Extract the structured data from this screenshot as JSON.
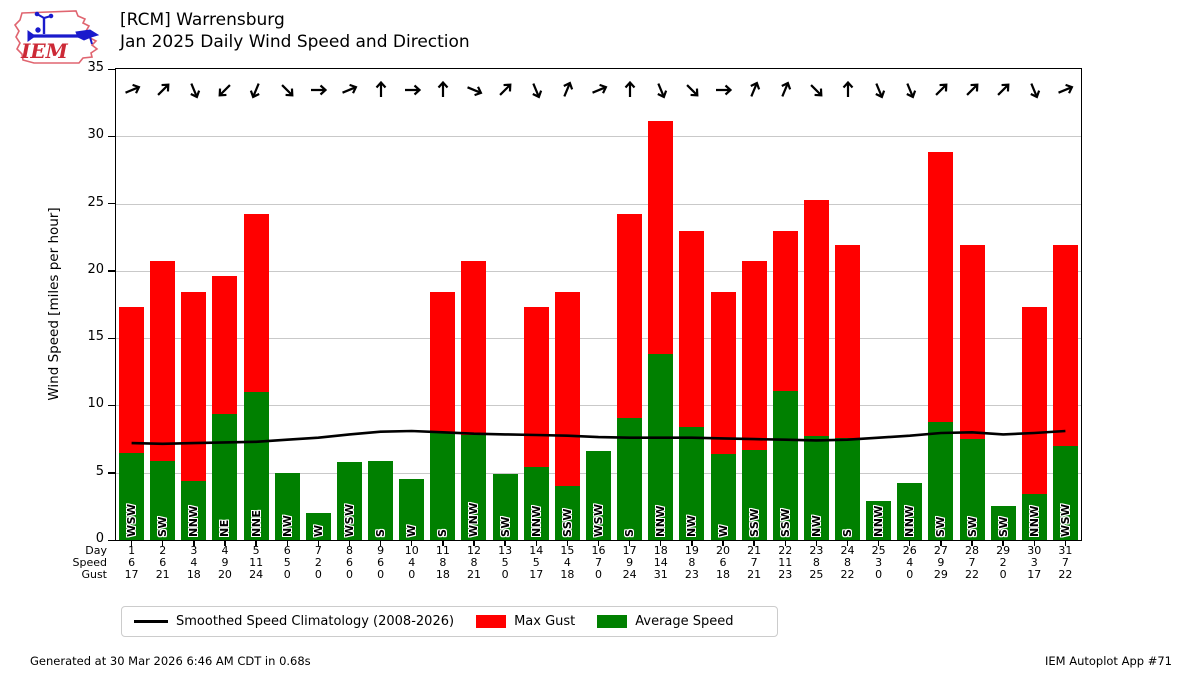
{
  "logo": {
    "label": "IEM"
  },
  "header": {
    "title_line1": "[RCM] Warrensburg",
    "title_line2": "Jan 2025 Daily Wind Speed and Direction"
  },
  "axis": {
    "ylabel": "Wind Speed [miles per hour]",
    "yticks": [
      0,
      5,
      10,
      15,
      20,
      25,
      30,
      35
    ],
    "ylim": [
      0,
      35
    ],
    "row_labels": [
      "Day",
      "Speed",
      "Gust"
    ]
  },
  "legend": {
    "items": [
      {
        "label": "Smoothed Speed Climatology (2008-2026)",
        "swatch": "line",
        "color": "#000000"
      },
      {
        "label": "Max Gust",
        "swatch": "rect",
        "color": "#ff0000"
      },
      {
        "label": "Average Speed",
        "swatch": "rect",
        "color": "#008000"
      }
    ]
  },
  "chart_data": {
    "type": "bar",
    "station": "[RCM] Warrensburg",
    "title": "Jan 2025 Daily Wind Speed and Direction",
    "ylabel": "Wind Speed [miles per hour]",
    "ylim": [
      0,
      35
    ],
    "grid": true,
    "legend_position": "bottom",
    "x": [
      1,
      2,
      3,
      4,
      5,
      6,
      7,
      8,
      9,
      10,
      11,
      12,
      13,
      14,
      15,
      16,
      17,
      18,
      19,
      20,
      21,
      22,
      23,
      24,
      25,
      26,
      27,
      28,
      29,
      30,
      31
    ],
    "wind_direction": [
      "WSW",
      "SW",
      "NNW",
      "NE",
      "NNE",
      "NW",
      "W",
      "WSW",
      "S",
      "W",
      "S",
      "WNW",
      "SW",
      "NNW",
      "SSW",
      "WSW",
      "S",
      "NNW",
      "NW",
      "W",
      "SSW",
      "SSW",
      "NW",
      "S",
      "NNW",
      "NNW",
      "SW",
      "SW",
      "SW",
      "NNW",
      "WSW"
    ],
    "speed_row": [
      6,
      6,
      4,
      9,
      11,
      5,
      2,
      6,
      6,
      4,
      8,
      8,
      5,
      5,
      4,
      7,
      9,
      14,
      8,
      6,
      7,
      11,
      8,
      8,
      3,
      4,
      9,
      7,
      2,
      3,
      7
    ],
    "gust_row": [
      17,
      21,
      18,
      20,
      24,
      0,
      0,
      0,
      0,
      0,
      18,
      21,
      0,
      17,
      18,
      0,
      24,
      31,
      23,
      18,
      21,
      23,
      25,
      22,
      0,
      0,
      29,
      22,
      0,
      17,
      22
    ],
    "series": [
      {
        "name": "Max Gust",
        "type": "bar",
        "color": "#ff0000",
        "values": [
          17.3,
          20.7,
          18.4,
          19.6,
          24.2,
          0,
          0,
          0,
          0,
          0,
          18.4,
          20.7,
          0,
          17.3,
          18.4,
          0,
          24.2,
          31.1,
          23.0,
          18.4,
          20.7,
          23.0,
          25.3,
          21.9,
          0,
          0,
          28.8,
          21.9,
          0,
          17.3,
          21.9
        ]
      },
      {
        "name": "Average Speed",
        "type": "bar",
        "color": "#008000",
        "values": [
          6.5,
          5.9,
          4.4,
          9.4,
          11.0,
          5.0,
          2.0,
          5.8,
          5.9,
          4.5,
          8.0,
          7.8,
          4.9,
          5.4,
          4.0,
          6.6,
          9.1,
          13.8,
          8.4,
          6.4,
          6.7,
          11.1,
          7.7,
          7.6,
          2.9,
          4.2,
          8.8,
          7.5,
          2.5,
          3.4,
          7.0
        ]
      },
      {
        "name": "Smoothed Speed Climatology (2008-2026)",
        "type": "line",
        "color": "#000000",
        "values": [
          7.2,
          7.15,
          7.2,
          7.25,
          7.3,
          7.45,
          7.6,
          7.85,
          8.05,
          8.1,
          8.0,
          7.9,
          7.85,
          7.8,
          7.75,
          7.65,
          7.6,
          7.6,
          7.6,
          7.55,
          7.5,
          7.45,
          7.4,
          7.45,
          7.6,
          7.75,
          7.95,
          8.0,
          7.85,
          7.95,
          8.1
        ]
      }
    ]
  },
  "footer": {
    "generated": "Generated at 30 Mar 2026 6:46 AM CDT in 0.68s",
    "app": "IEM Autoplot App #71"
  }
}
